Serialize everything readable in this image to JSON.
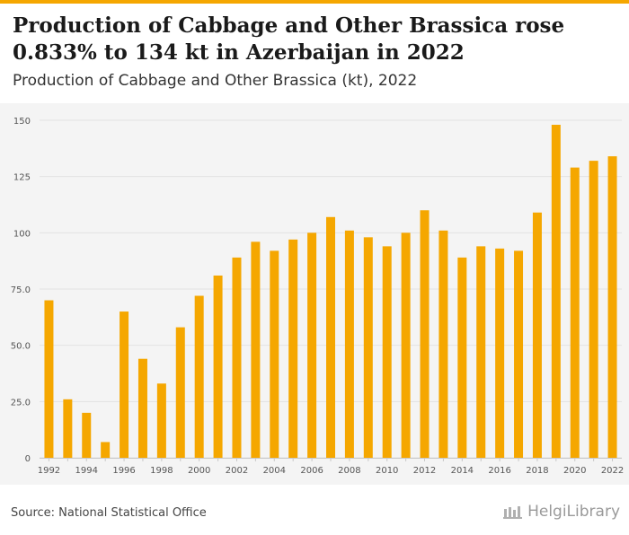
{
  "header": {
    "title": "Production of Cabbage and Other Brassica rose 0.833% to 134 kt in Azerbaijan in 2022",
    "subtitle": "Production of Cabbage and Other Brassica (kt), 2022"
  },
  "footer": {
    "source": "Source: National Statistical Office",
    "logo": "HelgiLibrary"
  },
  "colors": {
    "bar": "#f5a700",
    "accent": "#f5a700",
    "background": "#f4f4f4",
    "grid": "#e2e2e2"
  },
  "chart_data": {
    "type": "bar",
    "categories": [
      "1992",
      "1993",
      "1994",
      "1995",
      "1996",
      "1997",
      "1998",
      "1999",
      "2000",
      "2001",
      "2002",
      "2003",
      "2004",
      "2005",
      "2006",
      "2007",
      "2008",
      "2009",
      "2010",
      "2011",
      "2012",
      "2013",
      "2014",
      "2015",
      "2016",
      "2017",
      "2018",
      "2019",
      "2020",
      "2021",
      "2022"
    ],
    "values": [
      70,
      26,
      20,
      7,
      65,
      44,
      33,
      58,
      72,
      81,
      89,
      96,
      92,
      97,
      100,
      107,
      101,
      98,
      94,
      100,
      110,
      101,
      89,
      94,
      93,
      92,
      109,
      148,
      129,
      132,
      134
    ],
    "xtick_labels": [
      "1992",
      "1994",
      "1996",
      "1998",
      "2000",
      "2002",
      "2004",
      "2006",
      "2008",
      "2010",
      "2012",
      "2014",
      "2016",
      "2018",
      "2020",
      "2022"
    ],
    "ytick_labels": [
      "0",
      "25.0",
      "50.0",
      "75.0",
      "100",
      "125",
      "150"
    ],
    "yticks": [
      0,
      25,
      50,
      75,
      100,
      125,
      150
    ],
    "ylim": [
      0,
      150
    ],
    "xlabel": "",
    "ylabel": "",
    "grid": true
  }
}
